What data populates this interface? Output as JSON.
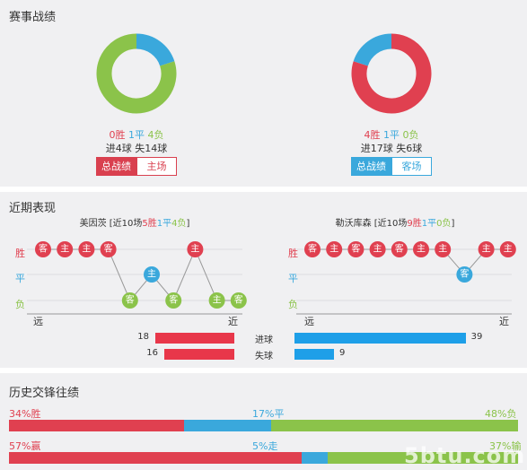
{
  "colors": {
    "win": "#e04050",
    "draw": "#3aa8dc",
    "loss": "#8bc34a",
    "home_bar": "#e8374a",
    "away_bar": "#1e9fe8",
    "panel_bg": "#f0f0f2"
  },
  "record": {
    "title": "赛事战绩",
    "home": {
      "win": "0胜",
      "draw": "1平",
      "loss": "4负",
      "goals": "进4球 失14球",
      "wins": 0,
      "draws": 1,
      "losses": 4,
      "tab_overall": "总战绩",
      "tab_venue": "主场"
    },
    "away": {
      "win": "4胜",
      "draw": "1平",
      "loss": "0负",
      "goals": "进17球 失6球",
      "wins": 4,
      "draws": 1,
      "losses": 0,
      "tab_overall": "总战绩",
      "tab_venue": "客场"
    }
  },
  "recent": {
    "title": "近期表现",
    "row_win": "胜",
    "row_draw": "平",
    "row_loss": "负",
    "far": "远",
    "near": "近",
    "home": {
      "team": "美因茨",
      "summary_pre": " [近10场",
      "w": "5胜",
      "d": "1平",
      "l": "4负",
      "summary_post": "]",
      "matches": [
        {
          "result": "W",
          "venue": "客"
        },
        {
          "result": "W",
          "venue": "主"
        },
        {
          "result": "W",
          "venue": "主"
        },
        {
          "result": "W",
          "venue": "客"
        },
        {
          "result": "L",
          "venue": "客"
        },
        {
          "result": "D",
          "venue": "主"
        },
        {
          "result": "L",
          "venue": "客"
        },
        {
          "result": "W",
          "venue": "主"
        },
        {
          "result": "L",
          "venue": "主"
        },
        {
          "result": "L",
          "venue": "客"
        }
      ]
    },
    "away": {
      "team": "勒沃库森",
      "summary_pre": " [近10场",
      "w": "9胜",
      "d": "1平",
      "l": "0负",
      "summary_post": "]",
      "matches": [
        {
          "result": "W",
          "venue": "客"
        },
        {
          "result": "W",
          "venue": "主"
        },
        {
          "result": "W",
          "venue": "客"
        },
        {
          "result": "W",
          "venue": "主"
        },
        {
          "result": "W",
          "venue": "客"
        },
        {
          "result": "W",
          "venue": "主"
        },
        {
          "result": "W",
          "venue": "主"
        },
        {
          "result": "D",
          "venue": "客"
        },
        {
          "result": "W",
          "venue": "主"
        },
        {
          "result": "W",
          "venue": "主"
        }
      ]
    },
    "goals": {
      "scored_label": "进球",
      "conceded_label": "失球",
      "home_scored": 18,
      "home_conceded": 16,
      "away_scored": 39,
      "away_conceded": 9
    }
  },
  "h2h": {
    "title": "历史交锋往绩",
    "row1": {
      "left": "34%胜",
      "mid": "17%平",
      "right": "48%负",
      "a": 34,
      "b": 17,
      "c": 48
    },
    "row2": {
      "left": "57%赢",
      "mid": "5%走",
      "right": "37%输",
      "a": 57,
      "b": 5,
      "c": 37
    }
  },
  "watermark": "5btu.com"
}
